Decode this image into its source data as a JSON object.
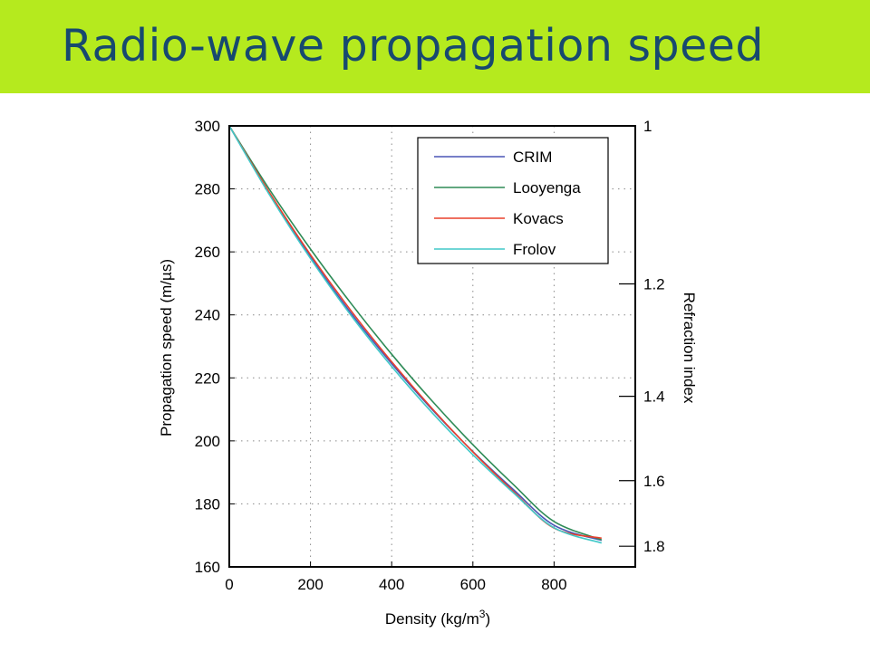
{
  "slide": {
    "title": "Radio-wave propagation speed",
    "title_bar_color": "#b5ea1e",
    "title_color": "#17496f"
  },
  "chart_data": {
    "type": "line",
    "title": "",
    "xlabel": "Density (kg/m",
    "xlabel_sup": "3",
    "xlabel_end": ")",
    "ylabel": "Propagation speed (m/µs)",
    "y2label": "Refraction index",
    "xlim": [
      0,
      1000
    ],
    "ylim": [
      160,
      300
    ],
    "xticks": [
      0,
      200,
      400,
      600,
      800
    ],
    "yticks": [
      160,
      180,
      200,
      220,
      240,
      260,
      280,
      300
    ],
    "y2ticks": [
      {
        "label": "1",
        "value": 1.0
      },
      {
        "label": "1.2",
        "value": 1.2
      },
      {
        "label": "1.4",
        "value": 1.4
      },
      {
        "label": "1.6",
        "value": 1.6
      },
      {
        "label": "1.8",
        "value": 1.8
      }
    ],
    "grid": true,
    "grid_style": "dotted",
    "legend_position": "top-right",
    "series": [
      {
        "name": "CRIM",
        "color": "#4a55b5",
        "x": [
          0,
          100,
          200,
          300,
          400,
          500,
          600,
          700,
          800,
          917
        ],
        "y": [
          300,
          278.2,
          258.4,
          240.5,
          224.5,
          209.9,
          196.6,
          184.5,
          173.2,
          168.4
        ]
      },
      {
        "name": "Looyenga",
        "color": "#2e8b57",
        "x": [
          0,
          100,
          200,
          300,
          400,
          500,
          600,
          700,
          800,
          917
        ],
        "y": [
          300,
          279.6,
          260.9,
          243.6,
          227.5,
          212.6,
          198.8,
          186.1,
          174.4,
          168.6
        ]
      },
      {
        "name": "Kovacs",
        "color": "#e8402c",
        "x": [
          0,
          100,
          200,
          300,
          400,
          500,
          600,
          700,
          800,
          917
        ],
        "y": [
          300,
          278.6,
          259.1,
          241.3,
          225.1,
          210.2,
          196.5,
          183.9,
          172.3,
          169.1
        ]
      },
      {
        "name": "Frolov",
        "color": "#40c8c8",
        "x": [
          0,
          100,
          200,
          300,
          400,
          500,
          600,
          700,
          800,
          917
        ],
        "y": [
          300,
          277.9,
          257.9,
          239.8,
          223.6,
          208.9,
          195.6,
          183.5,
          172.4,
          167.6
        ]
      }
    ]
  }
}
